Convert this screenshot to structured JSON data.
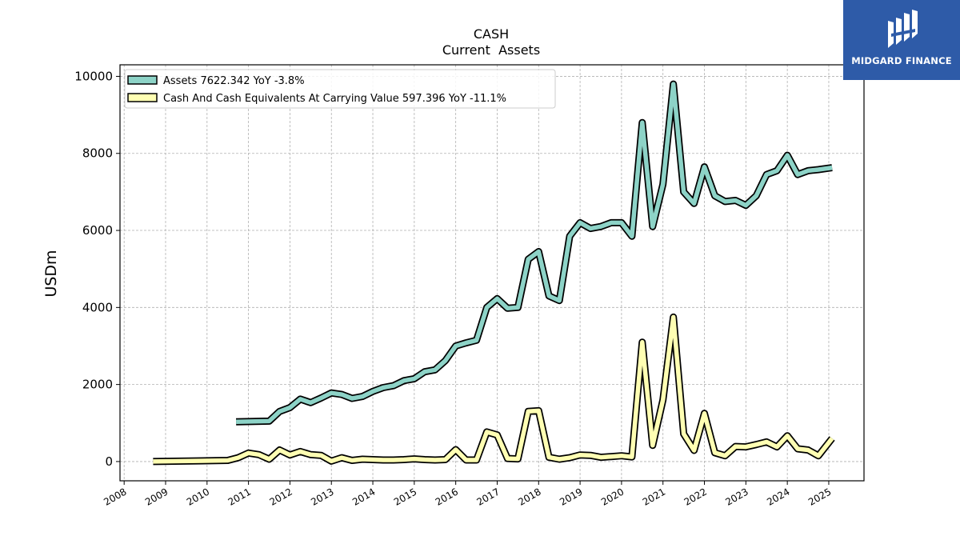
{
  "chart_data": {
    "type": "line",
    "title": "CASH",
    "subtitle": "Current  Assets",
    "ylabel": "USDm",
    "xlabel": "",
    "ylim": [
      -500,
      10300
    ],
    "xlim": [
      2007.9,
      2025.85
    ],
    "yticks": [
      0,
      2000,
      4000,
      6000,
      8000,
      10000
    ],
    "xticks": [
      "2008",
      "2009",
      "2010",
      "2011",
      "2012",
      "2013",
      "2014",
      "2015",
      "2016",
      "2017",
      "2018",
      "2019",
      "2020",
      "2021",
      "2022",
      "2023",
      "2024",
      "2025"
    ],
    "grid": true,
    "legend_position": "top-left",
    "series": [
      {
        "name": "Assets  7622.342 YoY -3.8%",
        "color": "#8dd3c7",
        "x": [
          2010.7,
          2011.5,
          2011.75,
          2012.0,
          2012.25,
          2012.5,
          2012.75,
          2013.0,
          2013.25,
          2013.5,
          2013.75,
          2014.0,
          2014.25,
          2014.5,
          2014.75,
          2015.0,
          2015.25,
          2015.5,
          2015.75,
          2016.0,
          2016.25,
          2016.5,
          2016.75,
          2017.0,
          2017.25,
          2017.5,
          2017.75,
          2018.0,
          2018.25,
          2018.5,
          2018.75,
          2019.0,
          2019.25,
          2019.5,
          2019.75,
          2020.0,
          2020.25,
          2020.5,
          2020.75,
          2021.0,
          2021.25,
          2021.5,
          2021.75,
          2022.0,
          2022.25,
          2022.5,
          2022.75,
          2023.0,
          2023.25,
          2023.5,
          2023.75,
          2024.0,
          2024.25,
          2024.5,
          2024.75,
          2025.08
        ],
        "values": [
          1030,
          1050,
          1300,
          1400,
          1620,
          1530,
          1650,
          1780,
          1740,
          1640,
          1690,
          1820,
          1920,
          1970,
          2100,
          2150,
          2330,
          2380,
          2620,
          3000,
          3080,
          3150,
          4000,
          4230,
          3980,
          4000,
          5250,
          5450,
          4300,
          4180,
          5850,
          6200,
          6050,
          6100,
          6200,
          6200,
          5850,
          8800,
          6100,
          7200,
          9800,
          7000,
          6700,
          7650,
          6900,
          6750,
          6780,
          6650,
          6900,
          7450,
          7550,
          7950,
          7450,
          7550,
          7580,
          7630
        ]
      },
      {
        "name": "Cash And Cash Equivalents At Carrying Value  597.396 YoY -11.1%",
        "color": "#ffffb3",
        "x": [
          2008.7,
          2010.5,
          2010.75,
          2011.0,
          2011.25,
          2011.5,
          2011.75,
          2012.0,
          2012.25,
          2012.5,
          2012.75,
          2013.0,
          2013.25,
          2013.5,
          2013.75,
          2014.0,
          2014.25,
          2014.5,
          2014.75,
          2015.0,
          2015.25,
          2015.5,
          2015.75,
          2016.0,
          2016.25,
          2016.5,
          2016.75,
          2017.0,
          2017.25,
          2017.5,
          2017.75,
          2018.0,
          2018.25,
          2018.5,
          2018.75,
          2019.0,
          2019.25,
          2019.5,
          2019.75,
          2020.0,
          2020.25,
          2020.5,
          2020.75,
          2021.0,
          2021.25,
          2021.5,
          2021.75,
          2022.0,
          2022.25,
          2022.5,
          2022.75,
          2023.0,
          2023.25,
          2023.5,
          2023.75,
          2024.0,
          2024.25,
          2024.5,
          2024.75,
          2025.08
        ],
        "values": [
          0,
          30,
          100,
          220,
          180,
          60,
          300,
          170,
          260,
          180,
          160,
          10,
          100,
          30,
          60,
          50,
          40,
          40,
          50,
          70,
          50,
          40,
          50,
          310,
          40,
          40,
          770,
          690,
          80,
          70,
          1300,
          1320,
          110,
          60,
          100,
          170,
          160,
          110,
          130,
          150,
          120,
          3100,
          420,
          1600,
          3750,
          720,
          290,
          1250,
          230,
          150,
          390,
          380,
          440,
          510,
          380,
          670,
          330,
          300,
          150,
          600
        ]
      }
    ]
  },
  "logo": {
    "text": "MIDGARD FINANCE",
    "icon": "midgard-logo-icon"
  }
}
